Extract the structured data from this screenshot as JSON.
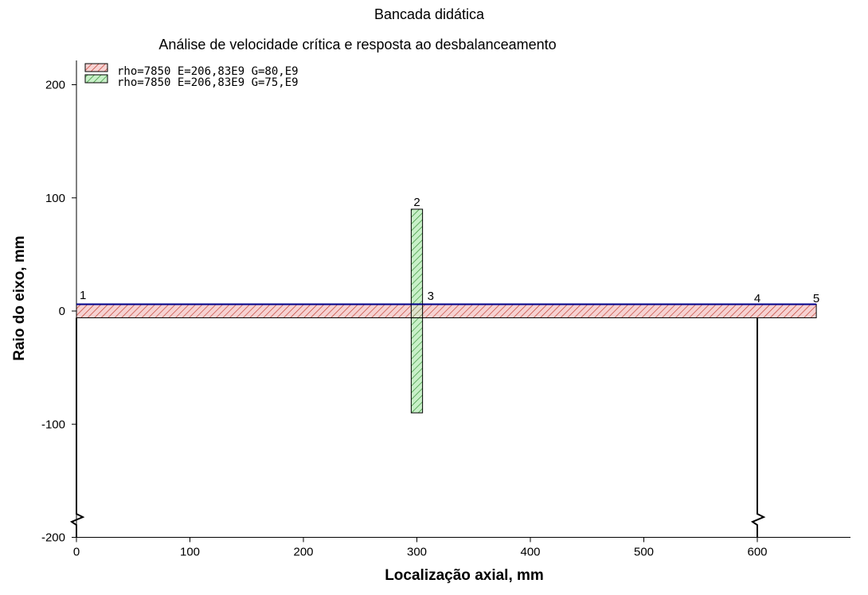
{
  "chart_data": {
    "type": "diagram",
    "title": "Bancada didática",
    "subtitle": "Análise de velocidade crítica e resposta ao desbalanceamento",
    "xlabel": "Localização axial, mm",
    "ylabel": "Raio do eixo, mm",
    "xlim": [
      0,
      680
    ],
    "ylim": [
      -200,
      220
    ],
    "xticks": [
      0,
      100,
      200,
      300,
      400,
      500,
      600
    ],
    "yticks": [
      200,
      100,
      0,
      -100,
      -200
    ],
    "grid": false,
    "legend_position": "top-left",
    "materials": [
      {
        "label": "rho=7850  E=206,83E9  G=80,E9",
        "fill": "#f6d2d2",
        "hatch": "#c0392b"
      },
      {
        "label": "rho=7850  E=206,83E9  G=75,E9",
        "fill": "#c8f0c8",
        "hatch": "#2e8b2e"
      }
    ],
    "elements": [
      {
        "x0": 0,
        "x1": 652,
        "r_outer": 6,
        "material": 0
      },
      {
        "x0": 295,
        "x1": 305,
        "r_inner": 6,
        "r_outer": 90,
        "material": 1
      }
    ],
    "nodes": [
      {
        "label": "1",
        "x": 0
      },
      {
        "label": "2",
        "x": 300,
        "r": 90
      },
      {
        "label": "3",
        "x": 305
      },
      {
        "label": "4",
        "x": 600
      },
      {
        "label": "5",
        "x": 652
      }
    ],
    "supports": [
      {
        "x": 0
      },
      {
        "x": 600
      }
    ],
    "colors": {
      "axis": "#000000",
      "shaft_outline": "#00008b",
      "part_outline": "#000000"
    }
  }
}
